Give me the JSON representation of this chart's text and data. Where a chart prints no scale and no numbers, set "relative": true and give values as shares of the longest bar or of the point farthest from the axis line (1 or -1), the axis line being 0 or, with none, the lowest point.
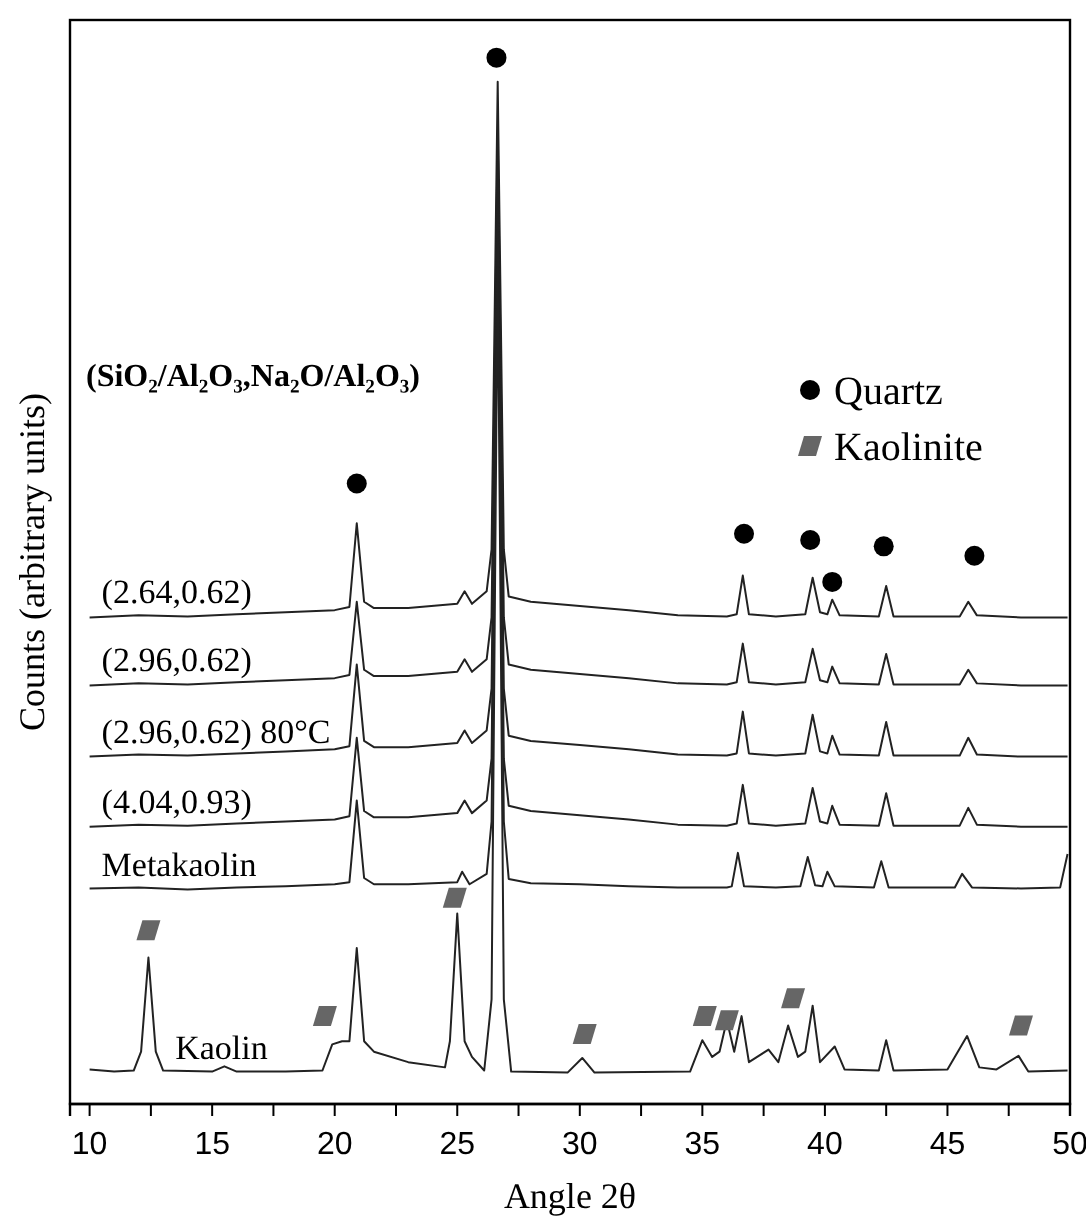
{
  "chart_data": {
    "type": "line",
    "relative": true,
    "xlabel": "Angle 2θ",
    "ylabel": "Counts (arbitrary units)",
    "legend_title": "(SiO₂/Al₂O₃,Na₂O/Al₂O₃)",
    "legend": "top right",
    "grid": false,
    "tick_labels": "x",
    "xlim": [
      9.2,
      50
    ],
    "xticks": [
      10,
      {
        "value": 12.5,
        "label": null
      },
      15,
      {
        "value": 17.5,
        "label": null
      },
      20,
      {
        "value": 22.5,
        "label": null
      },
      25,
      {
        "value": 27.5,
        "label": null
      },
      30,
      {
        "value": 32.5,
        "label": null
      },
      35,
      {
        "value": 37.5,
        "label": null
      },
      40,
      {
        "value": 42.5,
        "label": null
      },
      45,
      {
        "value": 47.5,
        "label": null
      },
      50
    ],
    "series": [
      {
        "name": "(2.64,0.62)",
        "color": "#222222",
        "x": [
          10,
          12,
          14,
          16,
          18,
          20,
          20.6,
          20.9,
          21.2,
          21.6,
          23,
          25,
          25.3,
          25.6,
          26.2,
          26.4,
          26.65,
          26.9,
          27.1,
          28,
          30,
          32,
          34,
          36,
          36.4,
          36.65,
          36.9,
          38,
          39.2,
          39.5,
          39.8,
          40.1,
          40.3,
          40.6,
          42.2,
          42.5,
          42.8,
          45.5,
          45.85,
          46.2,
          48,
          49.9
        ],
        "values": [
          0.465,
          0.467,
          0.466,
          0.468,
          0.47,
          0.472,
          0.475,
          0.555,
          0.48,
          0.474,
          0.474,
          0.478,
          0.49,
          0.478,
          0.49,
          0.53,
          0.977,
          0.53,
          0.485,
          0.48,
          0.476,
          0.472,
          0.467,
          0.466,
          0.468,
          0.505,
          0.468,
          0.466,
          0.468,
          0.503,
          0.47,
          0.468,
          0.482,
          0.467,
          0.466,
          0.495,
          0.466,
          0.466,
          0.48,
          0.467,
          0.465,
          0.465
        ]
      },
      {
        "name": "(2.96,0.62)",
        "color": "#222222",
        "x": [
          10,
          12,
          14,
          16,
          18,
          20,
          20.6,
          20.9,
          21.2,
          21.6,
          23,
          25,
          25.3,
          25.6,
          26.2,
          26.4,
          26.65,
          26.9,
          27.1,
          28,
          30,
          32,
          34,
          36,
          36.4,
          36.65,
          36.9,
          38,
          39.2,
          39.5,
          39.8,
          40.1,
          40.3,
          40.6,
          42.2,
          42.5,
          42.8,
          45.5,
          45.85,
          46.2,
          48,
          49.9
        ],
        "values": [
          0.4,
          0.402,
          0.401,
          0.403,
          0.405,
          0.407,
          0.41,
          0.48,
          0.415,
          0.409,
          0.409,
          0.413,
          0.425,
          0.413,
          0.425,
          0.465,
          0.93,
          0.465,
          0.42,
          0.415,
          0.411,
          0.407,
          0.402,
          0.401,
          0.403,
          0.44,
          0.403,
          0.401,
          0.403,
          0.435,
          0.405,
          0.403,
          0.418,
          0.402,
          0.401,
          0.43,
          0.401,
          0.401,
          0.415,
          0.402,
          0.4,
          0.4
        ]
      },
      {
        "name": "(2.96,0.62) 80°C",
        "color": "#222222",
        "x": [
          10,
          12,
          14,
          16,
          18,
          20,
          20.6,
          20.9,
          21.2,
          21.6,
          23,
          25,
          25.3,
          25.6,
          26.2,
          26.4,
          26.65,
          26.9,
          27.1,
          28,
          30,
          32,
          34,
          36,
          36.4,
          36.65,
          36.9,
          38,
          39.2,
          39.5,
          39.8,
          40.1,
          40.3,
          40.6,
          42.2,
          42.5,
          42.8,
          45.5,
          45.85,
          46.2,
          48,
          49.9
        ],
        "values": [
          0.332,
          0.334,
          0.333,
          0.335,
          0.337,
          0.339,
          0.342,
          0.42,
          0.347,
          0.341,
          0.341,
          0.345,
          0.357,
          0.345,
          0.357,
          0.397,
          0.9,
          0.397,
          0.352,
          0.347,
          0.343,
          0.339,
          0.334,
          0.333,
          0.335,
          0.375,
          0.335,
          0.333,
          0.335,
          0.372,
          0.337,
          0.335,
          0.352,
          0.334,
          0.333,
          0.365,
          0.333,
          0.333,
          0.35,
          0.334,
          0.332,
          0.332
        ]
      },
      {
        "name": "(4.04,0.93)",
        "color": "#222222",
        "x": [
          10,
          12,
          14,
          16,
          18,
          20,
          20.6,
          20.9,
          21.2,
          21.6,
          23,
          25,
          25.3,
          25.6,
          26.2,
          26.4,
          26.65,
          26.9,
          27.1,
          28,
          30,
          32,
          34,
          36,
          36.4,
          36.65,
          36.9,
          38,
          39.2,
          39.5,
          39.8,
          40.1,
          40.3,
          40.6,
          42.2,
          42.5,
          42.8,
          45.5,
          45.85,
          46.2,
          48,
          49.9
        ],
        "values": [
          0.265,
          0.267,
          0.266,
          0.268,
          0.27,
          0.272,
          0.275,
          0.35,
          0.28,
          0.274,
          0.274,
          0.278,
          0.29,
          0.278,
          0.29,
          0.33,
          0.87,
          0.33,
          0.285,
          0.28,
          0.276,
          0.272,
          0.267,
          0.266,
          0.268,
          0.305,
          0.268,
          0.266,
          0.268,
          0.302,
          0.27,
          0.268,
          0.285,
          0.267,
          0.266,
          0.297,
          0.266,
          0.266,
          0.283,
          0.267,
          0.265,
          0.265
        ]
      },
      {
        "name": "Metakaolin",
        "color": "#222222",
        "x": [
          10,
          12,
          14,
          16,
          18,
          20,
          20.6,
          20.9,
          21.2,
          21.6,
          23,
          25,
          25.2,
          25.5,
          26.2,
          26.4,
          26.65,
          26.9,
          27.1,
          28,
          30,
          32,
          34,
          36,
          36.2,
          36.45,
          36.7,
          38,
          39,
          39.3,
          39.6,
          39.9,
          40.1,
          40.4,
          42,
          42.3,
          42.6,
          45.3,
          45.6,
          46,
          48,
          49.6,
          49.9
        ],
        "values": [
          0.206,
          0.207,
          0.205,
          0.207,
          0.208,
          0.21,
          0.212,
          0.29,
          0.216,
          0.21,
          0.21,
          0.212,
          0.222,
          0.21,
          0.22,
          0.27,
          0.85,
          0.27,
          0.215,
          0.211,
          0.21,
          0.208,
          0.207,
          0.207,
          0.208,
          0.24,
          0.208,
          0.207,
          0.208,
          0.236,
          0.209,
          0.208,
          0.222,
          0.208,
          0.207,
          0.232,
          0.207,
          0.207,
          0.22,
          0.207,
          0.206,
          0.207,
          0.239
        ]
      },
      {
        "name": "Kaolin",
        "color": "#222222",
        "x": [
          10,
          11,
          11.8,
          12.1,
          12.4,
          12.7,
          13,
          15,
          15.5,
          16,
          18,
          19.5,
          19.9,
          20.3,
          20.6,
          20.9,
          21.2,
          21.6,
          23,
          24.5,
          24.7,
          25,
          25.3,
          25.6,
          26.1,
          26.4,
          26.65,
          26.9,
          27.2,
          29.5,
          30.1,
          30.6,
          34.5,
          35,
          35.4,
          35.7,
          36,
          36.3,
          36.6,
          36.9,
          37.7,
          38.1,
          38.5,
          38.9,
          39.2,
          39.5,
          39.8,
          40.4,
          40.8,
          42.2,
          42.5,
          42.8,
          45,
          45.8,
          46.3,
          47,
          47.9,
          48.3,
          49.9
        ],
        "values": [
          0.033,
          0.031,
          0.032,
          0.05,
          0.14,
          0.05,
          0.032,
          0.031,
          0.036,
          0.031,
          0.031,
          0.032,
          0.057,
          0.06,
          0.06,
          0.149,
          0.06,
          0.05,
          0.04,
          0.035,
          0.06,
          0.182,
          0.06,
          0.045,
          0.032,
          0.1,
          0.8,
          0.1,
          0.031,
          0.03,
          0.044,
          0.03,
          0.031,
          0.061,
          0.045,
          0.05,
          0.08,
          0.05,
          0.084,
          0.04,
          0.052,
          0.04,
          0.075,
          0.045,
          0.05,
          0.094,
          0.04,
          0.055,
          0.033,
          0.032,
          0.061,
          0.032,
          0.033,
          0.065,
          0.035,
          0.033,
          0.046,
          0.031,
          0.032
        ]
      },
      {
        "name": "Quartz",
        "type": "scatter",
        "marker": "circle",
        "color": "#000000",
        "x": [
          20.9,
          26.6,
          36.7,
          39.4,
          40.3,
          42.4,
          46.1
        ],
        "values": [
          0.593,
          1,
          0.545,
          0.539,
          0.499,
          0.533,
          0.524
        ]
      },
      {
        "name": "Kaolinite",
        "type": "scatter",
        "marker": "diamond",
        "color": "#666666",
        "x": [
          12.4,
          19.6,
          24.9,
          30.2,
          35.1,
          36,
          38.7,
          48
        ],
        "values": [
          0.166,
          0.084,
          0.197,
          0.067,
          0.084,
          0.08,
          0.101,
          0.075
        ]
      }
    ]
  }
}
